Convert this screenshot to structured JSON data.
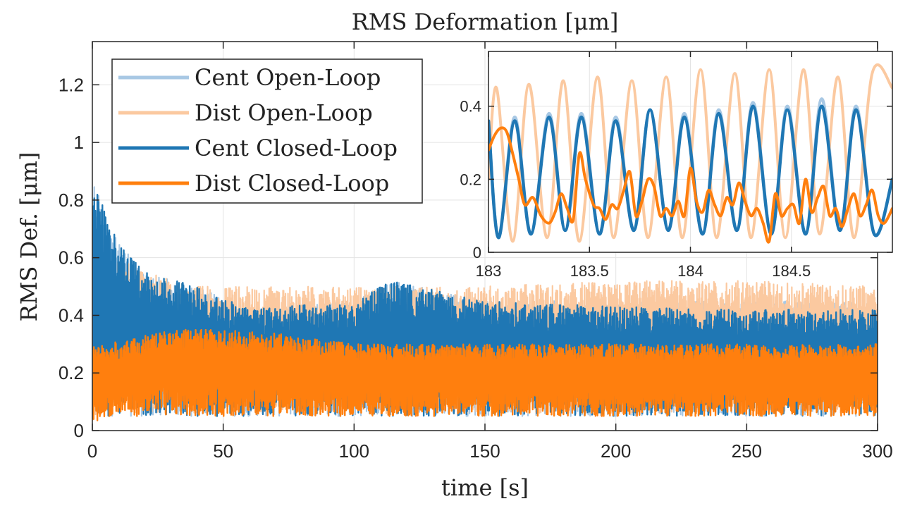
{
  "chart_data": [
    {
      "id": "main",
      "type": "line",
      "title": "RMS Deformation [μm]",
      "xlabel": "time [s]",
      "ylabel": "RMS Def. [μm]",
      "xlim": [
        0,
        300
      ],
      "ylim": [
        0,
        1.35
      ],
      "xticks": [
        0,
        50,
        100,
        150,
        200,
        250,
        300
      ],
      "xtick_labels": [
        "0",
        "50",
        "100",
        "150",
        "200",
        "250",
        "300"
      ],
      "yticks": [
        0,
        0.2,
        0.4,
        0.6,
        0.8,
        1.0,
        1.2
      ],
      "ytick_labels": [
        "0",
        "0.2",
        "0.4",
        "0.6",
        "0.8",
        "1",
        "1.2"
      ],
      "grid": true,
      "legend_position": "top-left",
      "series": [
        {
          "name": "Cent Open-Loop",
          "color": "#a8c8e4",
          "x": [
            0,
            2,
            5,
            10,
            20,
            40,
            60,
            100,
            114,
            150,
            200,
            250,
            300
          ],
          "peak": [
            0.9,
            0.85,
            0.75,
            0.65,
            0.55,
            0.5,
            0.42,
            0.45,
            0.52,
            0.45,
            0.45,
            0.45,
            0.45
          ],
          "trough": [
            0.02,
            0.05,
            0.05,
            0.05,
            0.05,
            0.05,
            0.05,
            0.05,
            0.05,
            0.05,
            0.05,
            0.05,
            0.05
          ]
        },
        {
          "name": "Dist Open-Loop",
          "color": "#fbc9a0",
          "x": [
            0,
            2,
            5,
            10,
            20,
            40,
            60,
            100,
            150,
            200,
            250,
            300
          ],
          "peak": [
            0.45,
            0.62,
            0.62,
            0.6,
            0.55,
            0.5,
            0.5,
            0.5,
            0.5,
            0.52,
            0.52,
            0.5
          ],
          "trough": [
            0.02,
            0.05,
            0.06,
            0.06,
            0.06,
            0.06,
            0.06,
            0.06,
            0.06,
            0.06,
            0.06,
            0.06
          ]
        },
        {
          "name": "Cent Closed-Loop",
          "color": "#1f77b4",
          "x": [
            0,
            2,
            5,
            10,
            20,
            40,
            60,
            100,
            114,
            150,
            200,
            250,
            300
          ],
          "peak": [
            0.9,
            0.85,
            0.75,
            0.65,
            0.55,
            0.5,
            0.42,
            0.45,
            0.52,
            0.45,
            0.43,
            0.42,
            0.42
          ],
          "trough": [
            0.02,
            0.05,
            0.05,
            0.05,
            0.05,
            0.05,
            0.05,
            0.05,
            0.05,
            0.05,
            0.05,
            0.05,
            0.05
          ]
        },
        {
          "name": "Dist Closed-Loop",
          "color": "#ff7f0e",
          "x": [
            0,
            5,
            30,
            60,
            100,
            150,
            200,
            250,
            300
          ],
          "peak": [
            0.3,
            0.3,
            0.35,
            0.35,
            0.3,
            0.3,
            0.3,
            0.3,
            0.3
          ],
          "trough": [
            0.02,
            0.05,
            0.05,
            0.05,
            0.05,
            0.05,
            0.05,
            0.05,
            0.05
          ]
        }
      ]
    },
    {
      "id": "inset",
      "type": "line",
      "title": "",
      "xlim": [
        183,
        185
      ],
      "ylim": [
        0,
        0.55
      ],
      "xticks": [
        183,
        183.5,
        184,
        184.5
      ],
      "xtick_labels": [
        "183",
        "183.5",
        "184",
        "184.5"
      ],
      "yticks": [
        0,
        0.2,
        0.4
      ],
      "ytick_labels": [
        "0",
        "0.2",
        "0.4"
      ],
      "grid": true,
      "series": [
        {
          "name": "Cent Open-Loop",
          "color": "#a8c8e4",
          "role": "cent-ol",
          "x": [
            183.0,
            183.05,
            183.13,
            183.21,
            183.3,
            183.38,
            183.46,
            183.55,
            183.63,
            183.72,
            183.8,
            183.89,
            183.97,
            184.06,
            184.14,
            184.23,
            184.31,
            184.4,
            184.48,
            184.57,
            184.65,
            184.74,
            184.82,
            184.91,
            185.0
          ],
          "y": [
            0.36,
            0.04,
            0.37,
            0.05,
            0.38,
            0.06,
            0.38,
            0.05,
            0.37,
            0.06,
            0.39,
            0.06,
            0.38,
            0.05,
            0.39,
            0.06,
            0.41,
            0.05,
            0.4,
            0.05,
            0.42,
            0.06,
            0.4,
            0.05,
            0.2
          ]
        },
        {
          "name": "Dist Open-Loop",
          "color": "#fbc9a0",
          "role": "dist-ol",
          "x": [
            183.0,
            183.04,
            183.12,
            183.2,
            183.29,
            183.37,
            183.45,
            183.54,
            183.62,
            183.71,
            183.79,
            183.88,
            183.96,
            184.05,
            184.13,
            184.22,
            184.3,
            184.39,
            184.47,
            184.56,
            184.64,
            184.73,
            184.81,
            184.9,
            185.0
          ],
          "y": [
            0.2,
            0.45,
            0.03,
            0.46,
            0.04,
            0.47,
            0.03,
            0.48,
            0.04,
            0.47,
            0.04,
            0.48,
            0.04,
            0.5,
            0.04,
            0.49,
            0.04,
            0.5,
            0.04,
            0.5,
            0.05,
            0.48,
            0.04,
            0.49,
            0.45
          ]
        },
        {
          "name": "Cent Closed-Loop",
          "color": "#1f77b4",
          "role": "cent-cl",
          "x": [
            183.0,
            183.05,
            183.13,
            183.21,
            183.3,
            183.38,
            183.46,
            183.55,
            183.63,
            183.72,
            183.8,
            183.89,
            183.97,
            184.06,
            184.14,
            184.23,
            184.31,
            184.4,
            184.48,
            184.57,
            184.65,
            184.74,
            184.82,
            184.91,
            185.0
          ],
          "y": [
            0.36,
            0.04,
            0.36,
            0.05,
            0.37,
            0.06,
            0.37,
            0.05,
            0.36,
            0.06,
            0.39,
            0.06,
            0.37,
            0.05,
            0.38,
            0.06,
            0.4,
            0.05,
            0.39,
            0.05,
            0.4,
            0.06,
            0.39,
            0.05,
            0.2
          ]
        },
        {
          "name": "Dist Closed-Loop",
          "color": "#ff7f0e",
          "role": "dist-cl",
          "x": [
            183.0,
            183.03,
            183.06,
            183.09,
            183.12,
            183.15,
            183.18,
            183.22,
            183.26,
            183.3,
            183.33,
            183.36,
            183.39,
            183.42,
            183.45,
            183.48,
            183.52,
            183.55,
            183.58,
            183.61,
            183.64,
            183.67,
            183.7,
            183.73,
            183.76,
            183.79,
            183.82,
            183.85,
            183.88,
            183.91,
            183.94,
            183.97,
            184.0,
            184.03,
            184.06,
            184.09,
            184.12,
            184.15,
            184.18,
            184.21,
            184.24,
            184.27,
            184.3,
            184.33,
            184.36,
            184.39,
            184.42,
            184.45,
            184.48,
            184.51,
            184.54,
            184.57,
            184.6,
            184.63,
            184.66,
            184.69,
            184.72,
            184.75,
            184.78,
            184.81,
            184.84,
            184.87,
            184.9,
            184.93,
            184.96,
            185.0
          ],
          "y": [
            0.28,
            0.32,
            0.34,
            0.33,
            0.27,
            0.2,
            0.13,
            0.15,
            0.1,
            0.08,
            0.11,
            0.16,
            0.12,
            0.09,
            0.27,
            0.2,
            0.13,
            0.12,
            0.09,
            0.13,
            0.12,
            0.17,
            0.22,
            0.1,
            0.14,
            0.2,
            0.18,
            0.1,
            0.12,
            0.1,
            0.14,
            0.1,
            0.23,
            0.14,
            0.11,
            0.17,
            0.13,
            0.1,
            0.15,
            0.13,
            0.19,
            0.14,
            0.1,
            0.12,
            0.08,
            0.03,
            0.16,
            0.1,
            0.12,
            0.13,
            0.08,
            0.2,
            0.11,
            0.15,
            0.18,
            0.1,
            0.12,
            0.07,
            0.12,
            0.16,
            0.1,
            0.13,
            0.17,
            0.1,
            0.08,
            0.12
          ]
        }
      ]
    }
  ],
  "legend": {
    "entries": [
      {
        "label": "Cent Open-Loop",
        "color": "#a8c8e4"
      },
      {
        "label": "Dist Open-Loop",
        "color": "#fbc9a0"
      },
      {
        "label": "Cent Closed-Loop",
        "color": "#1f77b4"
      },
      {
        "label": "Dist Closed-Loop",
        "color": "#ff7f0e"
      }
    ]
  }
}
